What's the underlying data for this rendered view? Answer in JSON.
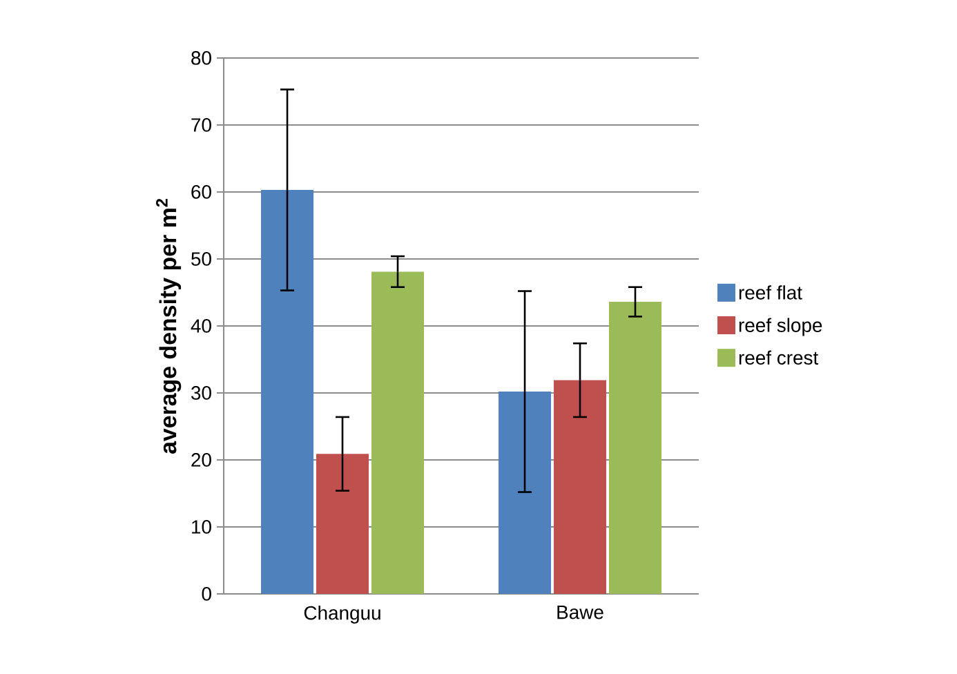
{
  "chart_data": {
    "type": "bar",
    "ylabel": "average density  per m$^{2}$",
    "categories": [
      "Changuu",
      "Bawe"
    ],
    "series": [
      {
        "name": "reef flat",
        "color": "#4f81bd",
        "values": [
          60.3,
          30.2
        ],
        "errors": [
          15.0,
          15.0
        ]
      },
      {
        "name": "reef slope",
        "color": "#c0504d",
        "values": [
          20.9,
          31.9
        ],
        "errors": [
          5.5,
          5.5
        ]
      },
      {
        "name": "reef crest",
        "color": "#9bbb59",
        "values": [
          48.1,
          43.6
        ],
        "errors": [
          2.3,
          2.2
        ]
      }
    ],
    "ylim": [
      0,
      80
    ],
    "yticks": [
      0,
      10,
      20,
      30,
      40,
      50,
      60,
      70,
      80
    ],
    "grid": "y",
    "legend": "right"
  }
}
